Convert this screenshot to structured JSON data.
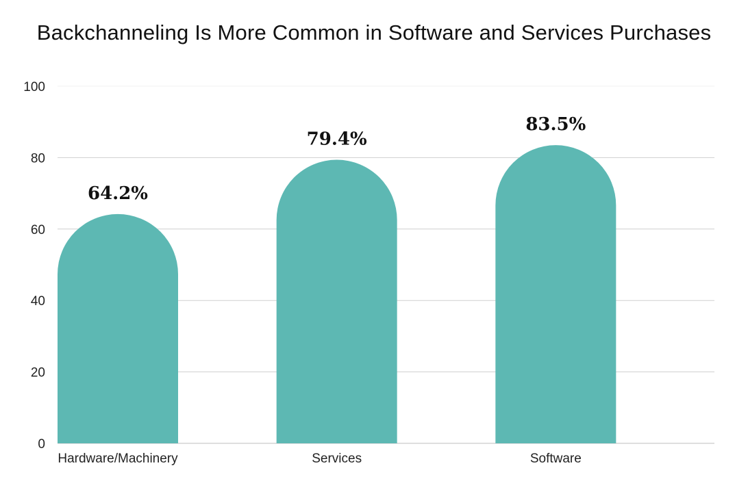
{
  "chart_data": {
    "type": "bar",
    "title": "Backchanneling Is More Common in Software and Services Purchases",
    "categories": [
      "Hardware/Machinery",
      "Services",
      "Software"
    ],
    "values": [
      64.2,
      79.4,
      83.5
    ],
    "data_labels": [
      "64.2%",
      "79.4%",
      "83.5%"
    ],
    "ylim": [
      0,
      100
    ],
    "yticks": [
      0,
      20,
      40,
      60,
      80,
      100
    ],
    "grid": true,
    "bar_color": "#5DB8B3"
  }
}
